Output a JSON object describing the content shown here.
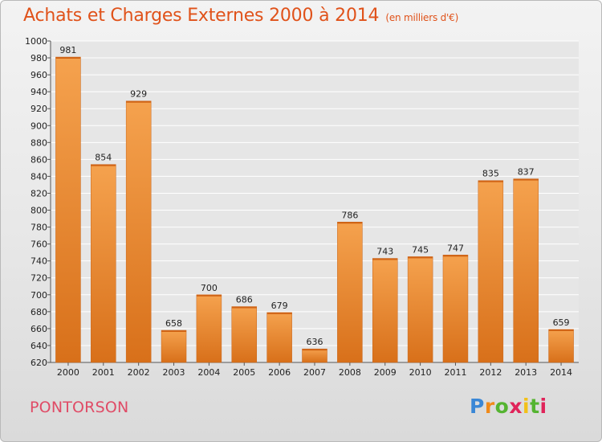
{
  "title": "Achats et Charges Externes 2000 à 2014",
  "unit": "(en milliers d'€)",
  "city": "PONTORSON",
  "logo": {
    "icon": "proxiti-logo",
    "text": "Proxiti"
  },
  "colors": {
    "bar_top": "#f5a24e",
    "bar_bottom": "#d8701a",
    "title": "#e0521a",
    "city": "#e04b66"
  },
  "chart_data": {
    "type": "bar",
    "title": "Achats et Charges Externes 2000 à 2014",
    "subtitle": "(en milliers d'€)",
    "categories": [
      "2000",
      "2001",
      "2002",
      "2003",
      "2004",
      "2005",
      "2006",
      "2007",
      "2008",
      "2009",
      "2010",
      "2011",
      "2012",
      "2013",
      "2014"
    ],
    "values": [
      981,
      854,
      929,
      658,
      700,
      686,
      679,
      636,
      786,
      743,
      745,
      747,
      835,
      837,
      659
    ],
    "ylim": [
      620,
      1000
    ],
    "yticks": [
      620,
      640,
      660,
      680,
      700,
      720,
      740,
      760,
      780,
      800,
      820,
      840,
      860,
      880,
      900,
      920,
      940,
      960,
      980,
      1000
    ],
    "grid": true,
    "legend": "none"
  }
}
